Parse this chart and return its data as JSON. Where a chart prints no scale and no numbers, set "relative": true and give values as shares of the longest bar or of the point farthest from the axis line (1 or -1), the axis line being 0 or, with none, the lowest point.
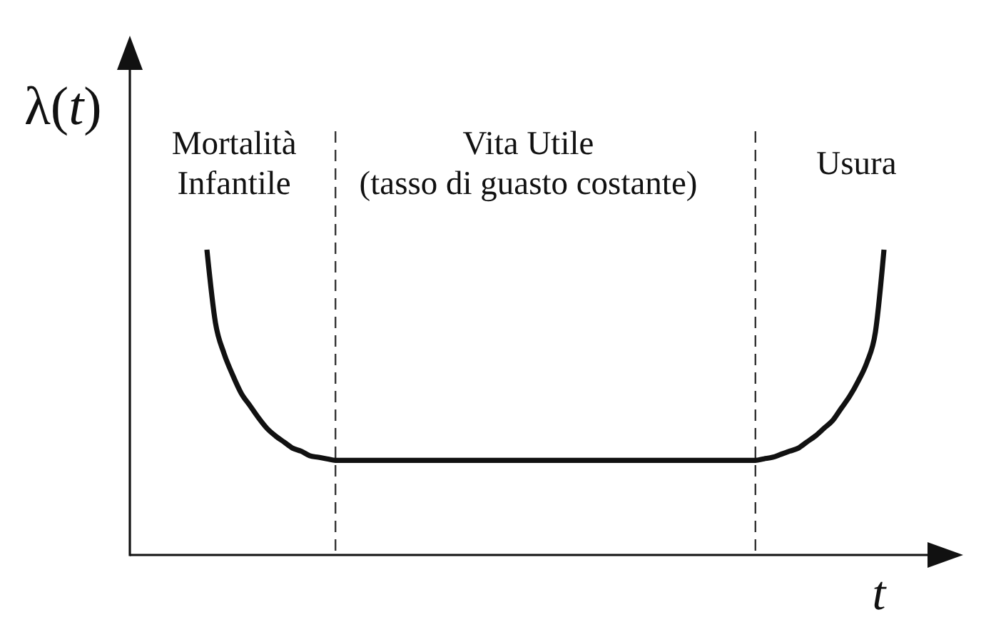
{
  "chart_data": {
    "type": "line",
    "relative": true,
    "xlabel": "t",
    "ylabel": "λ(t)",
    "categories": [
      null,
      null,
      null,
      null,
      null,
      null,
      null,
      null,
      null,
      null,
      null,
      null,
      null,
      null,
      null,
      null,
      null,
      null,
      null,
      null,
      null,
      null,
      null,
      null,
      null,
      null,
      null,
      null,
      null,
      null,
      null,
      null,
      null,
      null,
      null,
      null,
      null,
      null,
      null,
      null,
      null,
      null,
      null,
      null,
      null,
      null,
      null,
      null,
      null,
      null,
      null,
      null,
      null,
      null,
      null,
      null,
      null,
      null,
      null,
      null,
      null,
      null,
      null,
      null,
      null,
      null,
      null,
      null,
      null,
      null,
      null,
      null,
      null,
      null,
      null,
      null,
      null,
      null,
      null,
      null
    ],
    "values": [
      1,
      0.76,
      0.66,
      0.59,
      0.53,
      0.49,
      0.45,
      0.415,
      0.39,
      0.37,
      0.35,
      0.34,
      0.325,
      0.32,
      0.315,
      0.31,
      0.31,
      0.31,
      0.31,
      0.31,
      0.31,
      0.31,
      0.31,
      0.31,
      0.31,
      0.31,
      0.31,
      0.31,
      0.31,
      0.31,
      0.31,
      0.31,
      0.31,
      0.31,
      0.31,
      0.31,
      0.31,
      0.31,
      0.31,
      0.31,
      0.31,
      0.31,
      0.31,
      0.31,
      0.31,
      0.31,
      0.31,
      0.31,
      0.31,
      0.31,
      0.31,
      0.31,
      0.31,
      0.31,
      0.31,
      0.31,
      0.31,
      0.31,
      0.31,
      0.31,
      0.31,
      0.31,
      0.31,
      0.31,
      0.31,
      0.315,
      0.32,
      0.33,
      0.34,
      0.35,
      0.37,
      0.39,
      0.415,
      0.44,
      0.48,
      0.52,
      0.57,
      0.63,
      0.73,
      1
    ],
    "color": "#111111",
    "annotations": [
      "Mortalità\nInfantile",
      "Vita Utile\n(tasso di guasto costante)",
      "Usura"
    ]
  }
}
